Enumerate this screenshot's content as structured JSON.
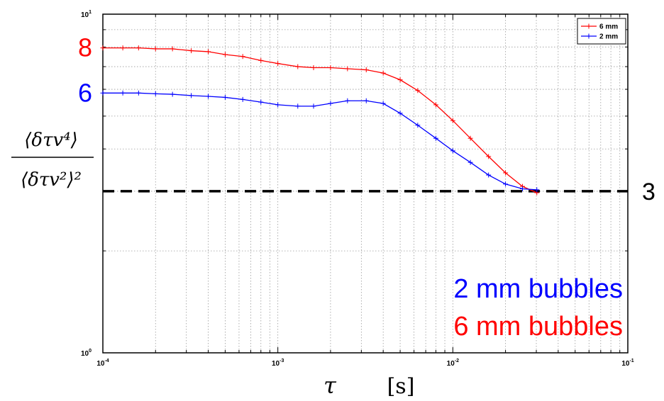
{
  "chart_data": {
    "type": "line",
    "xscale": "log",
    "yscale": "log",
    "xlim": [
      0.0001,
      0.1
    ],
    "ylim": [
      1,
      10
    ],
    "grid": true,
    "x_tick_labels": [
      {
        "base": "10",
        "exp": "-4"
      },
      {
        "base": "10",
        "exp": "-3"
      },
      {
        "base": "10",
        "exp": "-2"
      },
      {
        "base": "10",
        "exp": "-1"
      }
    ],
    "y_tick_labels": [
      {
        "base": "10",
        "exp": "0"
      },
      {
        "base": "10",
        "exp": "1"
      }
    ],
    "xlabel": {
      "symbol": "τ",
      "unit": "[s]"
    },
    "ylabel": {
      "numerator": "⟨δτv⁴⟩",
      "denominator": "⟨δτv²⟩²"
    },
    "legend": {
      "position": "top-right"
    },
    "series": [
      {
        "name": "6 mm",
        "color": "#ff0000",
        "x": [
          0.0001,
          0.00013,
          0.00016,
          0.0002,
          0.00025,
          0.00032,
          0.0004,
          0.0005,
          0.00063,
          0.0008,
          0.001,
          0.0013,
          0.0016,
          0.002,
          0.0025,
          0.0032,
          0.004,
          0.005,
          0.0063,
          0.008,
          0.01,
          0.0126,
          0.016,
          0.02,
          0.025,
          0.0302
        ],
        "y": [
          7.95,
          7.95,
          7.95,
          7.9,
          7.9,
          7.8,
          7.75,
          7.6,
          7.5,
          7.3,
          7.15,
          7.0,
          6.95,
          6.95,
          6.9,
          6.85,
          6.7,
          6.4,
          5.95,
          5.4,
          4.85,
          4.3,
          3.8,
          3.4,
          3.1,
          2.97
        ]
      },
      {
        "name": "2 mm",
        "color": "#0000ff",
        "x": [
          0.0001,
          0.00013,
          0.00016,
          0.0002,
          0.00025,
          0.00032,
          0.0004,
          0.0005,
          0.00063,
          0.0008,
          0.001,
          0.0013,
          0.0016,
          0.002,
          0.0025,
          0.0032,
          0.004,
          0.005,
          0.0063,
          0.008,
          0.01,
          0.0126,
          0.016,
          0.02,
          0.025,
          0.0302
        ],
        "y": [
          5.85,
          5.85,
          5.85,
          5.82,
          5.8,
          5.75,
          5.72,
          5.68,
          5.6,
          5.5,
          5.4,
          5.35,
          5.35,
          5.45,
          5.55,
          5.55,
          5.45,
          5.1,
          4.7,
          4.3,
          3.95,
          3.65,
          3.35,
          3.15,
          3.05,
          3.03
        ]
      }
    ],
    "reference_line": {
      "y": 3,
      "label": "3",
      "style": "dashed",
      "color": "#000000"
    },
    "annotations": {
      "left_marks": [
        {
          "text": "8",
          "color": "#ff0000",
          "y": 7.95
        },
        {
          "text": "6",
          "color": "#0000ff",
          "y": 5.85
        }
      ],
      "blue_text": "2 mm bubbles",
      "red_text": "6 mm bubbles"
    }
  }
}
